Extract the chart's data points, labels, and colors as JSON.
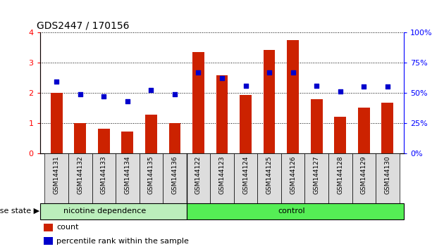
{
  "title": "GDS2447 / 170156",
  "samples": [
    "GSM144131",
    "GSM144132",
    "GSM144133",
    "GSM144134",
    "GSM144135",
    "GSM144136",
    "GSM144122",
    "GSM144123",
    "GSM144124",
    "GSM144125",
    "GSM144126",
    "GSM144127",
    "GSM144128",
    "GSM144129",
    "GSM144130"
  ],
  "count_values": [
    2.0,
    1.0,
    0.82,
    0.72,
    1.27,
    1.0,
    3.35,
    2.57,
    1.93,
    3.42,
    3.75,
    1.78,
    1.2,
    1.5,
    1.67
  ],
  "percentile_values": [
    59,
    49,
    47,
    43,
    52,
    49,
    67,
    62,
    56,
    67,
    67,
    56,
    51,
    55,
    55
  ],
  "group1_label": "nicotine dependence",
  "group1_count": 6,
  "group2_label": "control",
  "group2_count": 9,
  "group_label": "disease state",
  "bar_color": "#cc2200",
  "dot_color": "#0000cc",
  "group1_bg": "#bbeebb",
  "group2_bg": "#55ee55",
  "tick_bg": "#dddddd",
  "ylim_left": [
    0,
    4
  ],
  "ylim_right": [
    0,
    100
  ],
  "yticks_left": [
    0,
    1,
    2,
    3,
    4
  ],
  "yticks_right": [
    0,
    25,
    50,
    75,
    100
  ],
  "legend_count_label": "count",
  "legend_pct_label": "percentile rank within the sample",
  "bar_width": 0.5,
  "figsize": [
    6.3,
    3.54
  ],
  "dpi": 100
}
